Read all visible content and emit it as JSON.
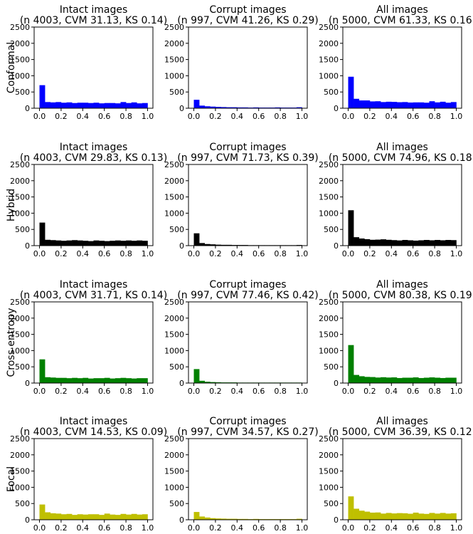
{
  "chart_data": {
    "type": "bar",
    "layout": {
      "rows": 4,
      "cols": 3
    },
    "xlim": [
      0,
      1
    ],
    "ylim": [
      0,
      2500
    ],
    "xticks": [
      "0.0",
      "0.2",
      "0.4",
      "0.6",
      "0.8",
      "1.0"
    ],
    "yticks": [
      "0",
      "500",
      "1000",
      "1500",
      "2000",
      "2500"
    ],
    "bin_width": 0.05,
    "bins": 20,
    "rows": [
      {
        "label": "Conformal",
        "color": "#0000ff",
        "panels": [
          {
            "title_line1": "Intact images",
            "title_line2": "(n 4003, CVM 31.13, KS 0.14)",
            "values": [
              710,
              190,
              180,
              190,
              170,
              180,
              160,
              170,
              170,
              160,
              170,
              150,
              160,
              160,
              150,
              190,
              160,
              180,
              150,
              160
            ]
          },
          {
            "title_line1": "Corrupt images",
            "title_line2": "(n 997, CVM 41.26, KS 0.29)",
            "values": [
              260,
              80,
              60,
              50,
              40,
              35,
              30,
              30,
              25,
              25,
              20,
              25,
              20,
              20,
              20,
              25,
              20,
              20,
              20,
              30
            ]
          },
          {
            "title_line1": "All images",
            "title_line2": "(n 5000, CVM 61.33, KS 0.16)",
            "values": [
              970,
              290,
              240,
              240,
              210,
              215,
              190,
              200,
              195,
              185,
              190,
              175,
              180,
              180,
              170,
              215,
              180,
              200,
              170,
              190
            ]
          }
        ]
      },
      {
        "label": "Hybrid",
        "color": "#000000",
        "panels": [
          {
            "title_line1": "Intact images",
            "title_line2": "(n 4003, CVM 29.83, KS 0.13)",
            "values": [
              710,
              180,
              170,
              160,
              150,
              160,
              170,
              160,
              150,
              140,
              160,
              150,
              140,
              150,
              160,
              150,
              160,
              150,
              160,
              150
            ]
          },
          {
            "title_line1": "Corrupt images",
            "title_line2": "(n 997, CVM 71.73, KS 0.39)",
            "values": [
              380,
              80,
              50,
              40,
              30,
              25,
              25,
              20,
              20,
              20,
              15,
              15,
              15,
              15,
              15,
              15,
              15,
              15,
              15,
              20
            ]
          },
          {
            "title_line1": "All images",
            "title_line2": "(n 5000, CVM 74.96, KS 0.18)",
            "values": [
              1090,
              260,
              220,
              200,
              180,
              185,
              195,
              180,
              170,
              160,
              175,
              165,
              155,
              165,
              175,
              165,
              175,
              165,
              175,
              170
            ]
          }
        ]
      },
      {
        "label": "Cross entropy",
        "color": "#008000",
        "panels": [
          {
            "title_line1": "Intact images",
            "title_line2": "(n 4003, CVM 31.71, KS 0.14)",
            "values": [
              730,
              180,
              170,
              160,
              160,
              150,
              160,
              150,
              160,
              140,
              150,
              150,
              160,
              140,
              150,
              160,
              150,
              140,
              150,
              150
            ]
          },
          {
            "title_line1": "Corrupt images",
            "title_line2": "(n 997, CVM 77.46, KS 0.42)",
            "values": [
              430,
              70,
              40,
              30,
              25,
              20,
              20,
              20,
              15,
              15,
              15,
              15,
              15,
              15,
              15,
              15,
              15,
              15,
              15,
              15
            ]
          },
          {
            "title_line1": "All images",
            "title_line2": "(n 5000, CVM 80.38, KS 0.19)",
            "values": [
              1170,
              250,
              210,
              190,
              185,
              170,
              180,
              170,
              175,
              155,
              165,
              165,
              175,
              155,
              165,
              175,
              165,
              155,
              165,
              165
            ]
          }
        ]
      },
      {
        "label": "Focal",
        "color": "#bfbf00",
        "panels": [
          {
            "title_line1": "Intact images",
            "title_line2": "(n 4003, CVM 14.53, KS 0.09)",
            "values": [
              470,
              230,
              200,
              190,
              170,
              180,
              150,
              170,
              160,
              170,
              170,
              150,
              190,
              160,
              150,
              180,
              160,
              180,
              160,
              170
            ]
          },
          {
            "title_line1": "Corrupt images",
            "title_line2": "(n 997, CVM 34.57, KS 0.27)",
            "values": [
              240,
              100,
              70,
              50,
              40,
              35,
              30,
              30,
              25,
              25,
              20,
              25,
              20,
              20,
              20,
              20,
              20,
              20,
              20,
              30
            ]
          },
          {
            "title_line1": "All images",
            "title_line2": "(n 5000, CVM 36.39, KS 0.12)",
            "values": [
              720,
              340,
              280,
              250,
              220,
              225,
              190,
              210,
              195,
              205,
              200,
              185,
              220,
              190,
              180,
              210,
              190,
              210,
              190,
              200
            ]
          }
        ]
      }
    ]
  }
}
